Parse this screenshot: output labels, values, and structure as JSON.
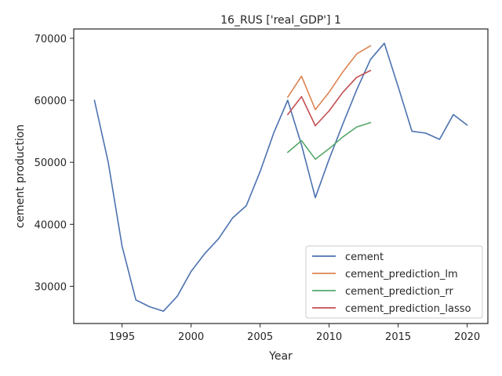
{
  "chart_data": {
    "type": "line",
    "title": "16_RUS ['real_GDP'] 1",
    "xlabel": "Year",
    "ylabel": "cement production",
    "xlim": [
      1991.5,
      2021.5
    ],
    "ylim": [
      24000,
      71500
    ],
    "xticks": [
      1995,
      2000,
      2005,
      2010,
      2015,
      2020
    ],
    "yticks": [
      30000,
      40000,
      50000,
      60000,
      70000
    ],
    "grid": false,
    "legend_position": "lower-right",
    "series": [
      {
        "name": "cement",
        "color": "#4c72b0",
        "x": [
          1993,
          1994,
          1995,
          1996,
          1997,
          1998,
          1999,
          2000,
          2001,
          2002,
          2003,
          2004,
          2005,
          2006,
          2007,
          2008,
          2009,
          2010,
          2011,
          2012,
          2013,
          2014,
          2015,
          2016,
          2017,
          2018,
          2019,
          2020
        ],
        "y": [
          60000,
          50000,
          36500,
          27800,
          26700,
          26000,
          28400,
          32400,
          35300,
          37700,
          41000,
          43000,
          48500,
          54800,
          60000,
          52800,
          44300,
          50500,
          56200,
          61700,
          66600,
          69200,
          62200,
          55000,
          54700,
          53700,
          57700,
          56000
        ]
      },
      {
        "name": "cement_prediction_lm",
        "color": "#dd8452",
        "x": [
          2007,
          2008,
          2009,
          2010,
          2011,
          2012,
          2013
        ],
        "y": [
          60500,
          63900,
          58500,
          61300,
          64600,
          67500,
          68800
        ]
      },
      {
        "name": "cement_prediction_rr",
        "color": "#55a868",
        "x": [
          2007,
          2008,
          2009,
          2010,
          2011,
          2012,
          2013
        ],
        "y": [
          51600,
          53500,
          50500,
          52200,
          54100,
          55700,
          56400
        ]
      },
      {
        "name": "cement_prediction_lasso",
        "color": "#c44e52",
        "x": [
          2007,
          2008,
          2009,
          2010,
          2011,
          2012,
          2013
        ],
        "y": [
          57700,
          60600,
          55900,
          58300,
          61300,
          63700,
          64800
        ]
      }
    ]
  }
}
